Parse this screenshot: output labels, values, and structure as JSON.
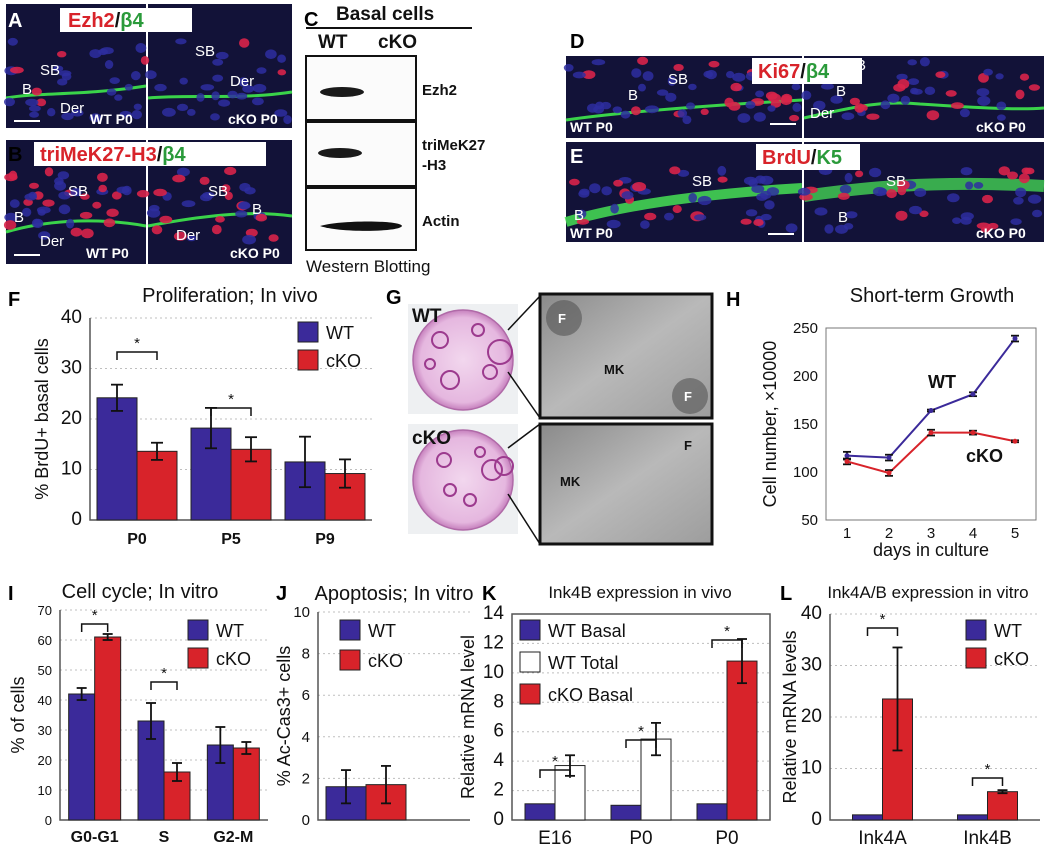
{
  "panels": {
    "A": {
      "letter": "A",
      "stain": [
        "Ezh2",
        "/",
        "β4"
      ],
      "labels": [
        "SB",
        "B",
        "Der",
        "WT P0",
        "SB",
        "Der",
        "cKO P0"
      ]
    },
    "B": {
      "letter": "B",
      "stain": [
        "triMeK27-H3",
        "/",
        "β4"
      ],
      "labels": [
        "SB",
        "B",
        "Der",
        "WT P0",
        "SB",
        "B",
        "Der",
        "cKO P0"
      ]
    },
    "C": {
      "letter": "C",
      "header": "Basal cells",
      "lanes": [
        "WT",
        "cKO"
      ],
      "bands": [
        "Ezh2",
        "triMeK27",
        "-H3",
        "Actin"
      ],
      "footer": "Western Blotting"
    },
    "D": {
      "letter": "D",
      "stain": [
        "Ki67",
        "/",
        "β4"
      ],
      "labels": [
        "SB",
        "B",
        "WT P0",
        "SB",
        "B",
        "Der",
        "cKO P0"
      ]
    },
    "E": {
      "letter": "E",
      "stain": [
        "BrdU",
        "/",
        "K5"
      ],
      "labels": [
        "SB",
        "B",
        "WT P0",
        "SB",
        "B",
        "cKO P0"
      ]
    },
    "G": {
      "letter": "G",
      "labels": [
        "WT",
        "cKO",
        "F",
        "F",
        "MK",
        "MK",
        "F"
      ]
    }
  },
  "colors": {
    "wt": "#3b2a9a",
    "cko": "#d8232a",
    "white": "#ffffff",
    "red_text": "#d8232a",
    "green_text": "#2a9a3a"
  },
  "chart_data": [
    {
      "panel": "F",
      "type": "bar",
      "title": "Proliferation; In vivo",
      "ylabel": "% BrdU+ basal cells",
      "ylim": [
        0,
        40
      ],
      "yticks": [
        0,
        10,
        20,
        30,
        40
      ],
      "categories": [
        "P0",
        "P5",
        "P9"
      ],
      "series": [
        {
          "name": "WT",
          "values": [
            24.2,
            18.2,
            11.5
          ],
          "errors": [
            2.6,
            4.0,
            5.0
          ]
        },
        {
          "name": "cKO",
          "values": [
            13.6,
            14.0,
            9.2
          ],
          "errors": [
            1.7,
            2.4,
            2.8
          ]
        }
      ],
      "significance": [
        "*",
        "*"
      ],
      "grid": true,
      "legend": "top-right"
    },
    {
      "panel": "H",
      "type": "line",
      "title": "Short-term Growth",
      "xlabel": "days in culture",
      "ylabel": "Cell number, ×10000",
      "x": [
        1,
        2,
        3,
        4,
        5
      ],
      "xlim": [
        0.5,
        5.5
      ],
      "ylim": [
        50,
        250
      ],
      "yticks": [
        50,
        100,
        150,
        200,
        250
      ],
      "series": [
        {
          "name": "WT",
          "values": [
            117,
            115,
            164,
            181,
            239
          ],
          "errors": [
            4,
            3,
            1,
            2,
            3
          ]
        },
        {
          "name": "cKO",
          "values": [
            111,
            99,
            141,
            141,
            132
          ],
          "errors": [
            3,
            3,
            3,
            2,
            1
          ]
        }
      ],
      "legend": "inline",
      "grid": false
    },
    {
      "panel": "I",
      "type": "bar",
      "title": "Cell cycle; In vitro",
      "ylabel": "% of cells",
      "ylim": [
        0,
        70
      ],
      "yticks": [
        0,
        10,
        20,
        30,
        40,
        50,
        60,
        70
      ],
      "categories": [
        "G0-G1",
        "S",
        "G2-M"
      ],
      "series": [
        {
          "name": "WT",
          "values": [
            42,
            33,
            25
          ],
          "errors": [
            2,
            6,
            6
          ]
        },
        {
          "name": "cKO",
          "values": [
            61,
            16,
            24
          ],
          "errors": [
            1,
            3,
            2
          ]
        }
      ],
      "significance": [
        "*",
        "*"
      ],
      "grid": true,
      "legend": "top-right"
    },
    {
      "panel": "J",
      "type": "bar",
      "title": "Apoptosis; In vitro",
      "ylabel": "% Ac-Cas3+ cells",
      "ylim": [
        0,
        10
      ],
      "yticks": [
        0,
        2,
        4,
        6,
        8,
        10
      ],
      "categories": [
        ""
      ],
      "series": [
        {
          "name": "WT",
          "values": [
            1.6
          ],
          "errors": [
            0.8
          ]
        },
        {
          "name": "cKO",
          "values": [
            1.7
          ],
          "errors": [
            0.9
          ]
        }
      ],
      "grid": true,
      "legend": "top-left"
    },
    {
      "panel": "K",
      "type": "bar",
      "title": "Ink4B expression in vivo",
      "ylabel": "Relative mRNA level",
      "ylim": [
        0,
        14
      ],
      "yticks": [
        0,
        2,
        4,
        6,
        8,
        10,
        12,
        14
      ],
      "categories": [
        "E16",
        "P0",
        "P0"
      ],
      "groups": [
        {
          "category": "E16",
          "bars": [
            {
              "series": "WT Basal",
              "value": 1.1
            },
            {
              "series": "WT Total",
              "value": 3.7,
              "error": 0.7
            }
          ]
        },
        {
          "category": "P0",
          "bars": [
            {
              "series": "WT Basal",
              "value": 1.0
            },
            {
              "series": "WT Total",
              "value": 5.5,
              "error": 1.1
            }
          ]
        },
        {
          "category": "P0",
          "bars": [
            {
              "series": "WT Basal",
              "value": 1.1
            },
            {
              "series": "cKO Basal",
              "value": 10.8,
              "error": 1.5
            }
          ]
        }
      ],
      "legend_entries": [
        "WT Basal",
        "WT Total",
        "cKO Basal"
      ],
      "significance": [
        "*",
        "*",
        "*"
      ],
      "grid": true,
      "legend": "top-left"
    },
    {
      "panel": "L",
      "type": "bar",
      "title": "Ink4A/B expression in vitro",
      "ylabel": "Relative mRNA levels",
      "ylim": [
        0,
        40
      ],
      "yticks": [
        0,
        10,
        20,
        30,
        40
      ],
      "categories": [
        "Ink4A",
        "Ink4B"
      ],
      "series": [
        {
          "name": "WT",
          "values": [
            1.0,
            1.0
          ],
          "errors": [
            0,
            0
          ]
        },
        {
          "name": "cKO",
          "values": [
            23.5,
            5.5
          ],
          "errors": [
            10,
            0.3
          ]
        }
      ],
      "significance": [
        "*",
        "*"
      ],
      "grid": true,
      "legend": "top-right"
    }
  ],
  "letters": {
    "F": "F",
    "H": "H",
    "I": "I",
    "J": "J",
    "K": "K",
    "L": "L"
  }
}
